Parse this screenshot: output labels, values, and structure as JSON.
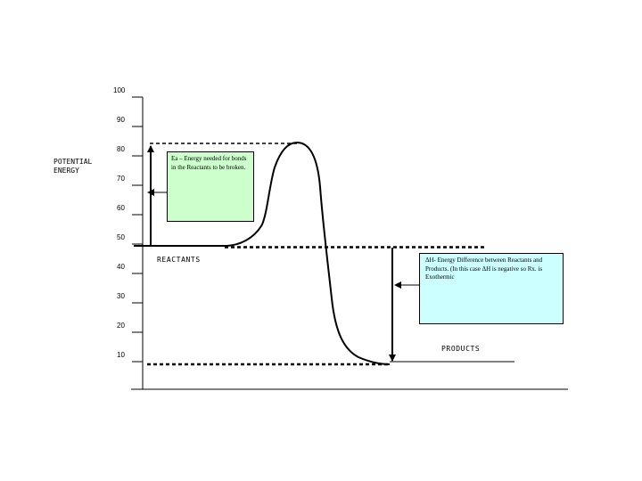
{
  "y_axis": {
    "title_lines": [
      "POTENTIAL",
      "ENERGY"
    ],
    "ticks": [
      {
        "value": 100,
        "label": "100"
      },
      {
        "value": 90,
        "label": "90"
      },
      {
        "value": 80,
        "label": "80"
      },
      {
        "value": 70,
        "label": "70"
      },
      {
        "value": 60,
        "label": "60"
      },
      {
        "value": 50,
        "label": "50"
      },
      {
        "value": 40,
        "label": "40"
      },
      {
        "value": 30,
        "label": "30"
      },
      {
        "value": 20,
        "label": "20"
      },
      {
        "value": 10,
        "label": "10"
      }
    ]
  },
  "energy_levels": {
    "reactants": 50,
    "activated_complex": 85,
    "products": 10
  },
  "labels": {
    "reactants": "REACTANTS",
    "products": "PRODUCTS"
  },
  "notes": {
    "activation_energy": "Ea – Energy needed for bonds in the Reactants to be broken.",
    "enthalpy_change": "ΔH- Energy Difference between Reactants and Products. (In this case ΔH is negative so Rx. is Exothermic"
  },
  "colors": {
    "ea_box": "#ccffcc",
    "dh_box": "#ccffff",
    "lines": "#000000"
  }
}
